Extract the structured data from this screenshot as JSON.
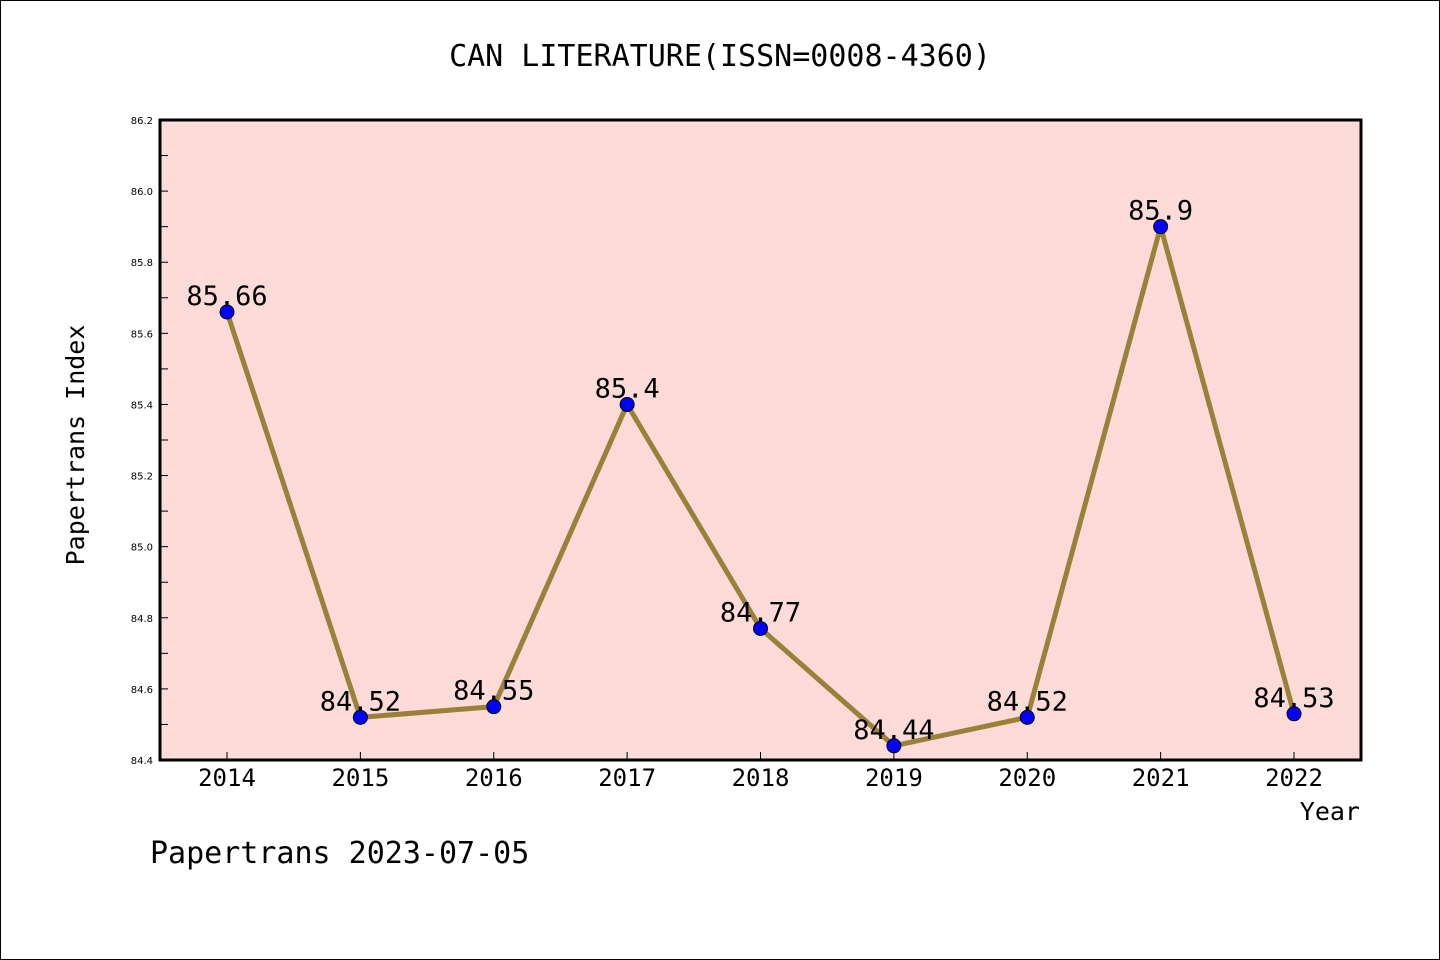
{
  "chart_data": {
    "type": "line",
    "title": "CAN LITERATURE(ISSN=0008-4360)",
    "xlabel": "Year",
    "ylabel": "Papertrans Index",
    "footer": "Papertrans 2023-07-05",
    "categories": [
      "2014",
      "2015",
      "2016",
      "2017",
      "2018",
      "2019",
      "2020",
      "2021",
      "2022"
    ],
    "series": [
      {
        "values": [
          85.66,
          84.52,
          84.55,
          85.4,
          84.77,
          84.44,
          84.52,
          85.9,
          84.53
        ]
      }
    ],
    "data_labels": [
      "85.66",
      "84.52",
      "84.55",
      "85.4",
      "84.77",
      "84.44",
      "84.52",
      "85.9",
      "84.53"
    ],
    "ylim": [
      84.4,
      86.2
    ],
    "yticks": [
      "84.4",
      "84.6",
      "84.8",
      "85.0",
      "85.2",
      "85.4",
      "85.6",
      "85.8",
      "86.0",
      "86.2"
    ],
    "grid": false,
    "colors": {
      "plot_background": "#fddbd8",
      "line": "#9a8038",
      "marker": "#0000ff"
    }
  }
}
